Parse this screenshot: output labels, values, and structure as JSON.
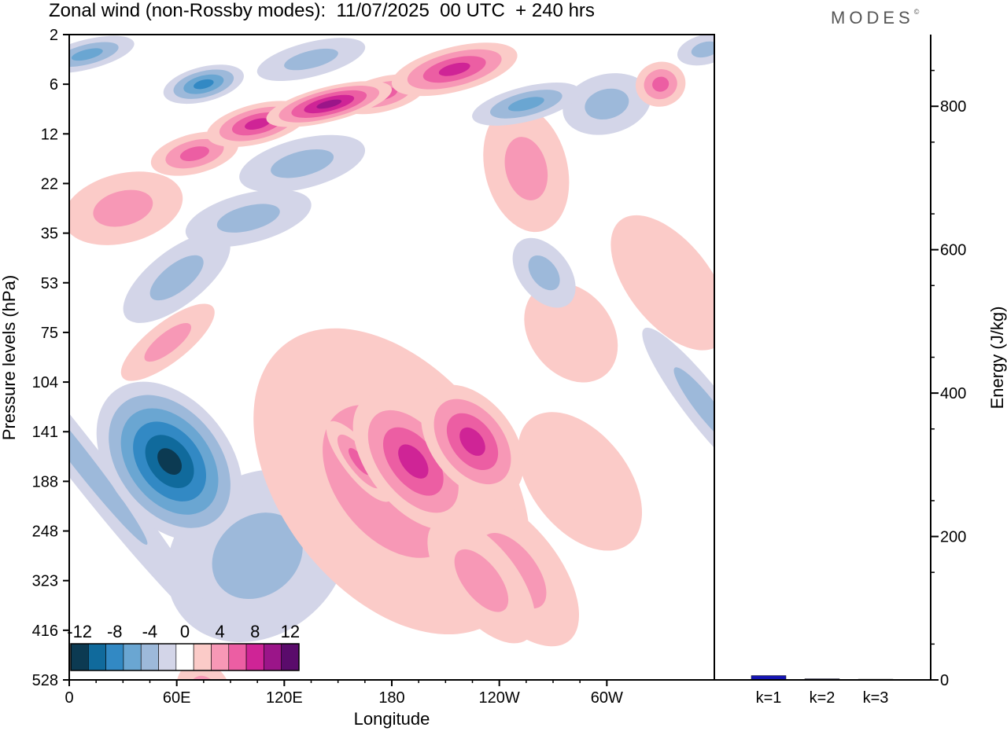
{
  "header": {
    "title": "Zonal wind (non-Rossby modes):  11/07/2025  00 UTC  + 240 hrs",
    "brand": "MODES",
    "brand_mark": "©"
  },
  "colors": {
    "levels": [
      "#0c3a52",
      "#106a9c",
      "#3289c4",
      "#6aa6d2",
      "#9db9da",
      "#d3d5e8",
      "#ffffff",
      "#fbcbc8",
      "#f798b6",
      "#ec5ea3",
      "#cf2496",
      "#9b1589",
      "#5a0b6b"
    ],
    "bar": "#1515b3"
  },
  "chart_data": [
    {
      "type": "heatmap",
      "title": "Zonal wind (non-Rossby modes)",
      "xlabel": "Longitude",
      "ylabel": "Pressure levels (hPa)",
      "x_tick_labels": [
        "0",
        "60E",
        "120E",
        "180",
        "120W",
        "60W"
      ],
      "x_tick_degrees": [
        0,
        60,
        120,
        180,
        240,
        300
      ],
      "xlim": [
        0,
        360
      ],
      "y_tick_labels": [
        "2",
        "6",
        "12",
        "22",
        "35",
        "53",
        "75",
        "104",
        "141",
        "188",
        "248",
        "323",
        "416",
        "528"
      ],
      "colorbar": {
        "labels": [
          "-12",
          "-8",
          "-4",
          "0",
          "4",
          "8",
          "12"
        ],
        "level_values": [
          -12,
          -10,
          -8,
          -6,
          -4,
          -2,
          0,
          2,
          4,
          6,
          8,
          10,
          12
        ]
      },
      "features": [
        {
          "lon": 56,
          "lev": 8.6,
          "w": 3.4,
          "h": 1.8,
          "value": -11
        },
        {
          "lon": 75,
          "lev": 1.0,
          "w": 2.3,
          "h": 0.35,
          "value": -7
        },
        {
          "lon": 10,
          "lev": 0.4,
          "w": 2.7,
          "h": 0.3,
          "value": -6
        },
        {
          "lon": 135,
          "lev": 0.5,
          "w": 3.1,
          "h": 0.35,
          "value": -3
        },
        {
          "lon": 355,
          "lev": 0.3,
          "w": 1.6,
          "h": 0.3,
          "value": -4
        },
        {
          "lon": 175,
          "lev": 1.2,
          "w": 2.5,
          "h": 0.35,
          "value": 6
        },
        {
          "lon": 145,
          "lev": 1.4,
          "w": 3.6,
          "h": 0.35,
          "value": 9
        },
        {
          "lon": 105,
          "lev": 1.8,
          "w": 2.9,
          "h": 0.4,
          "value": 8
        },
        {
          "lon": 70,
          "lev": 2.4,
          "w": 2.5,
          "h": 0.4,
          "value": 6
        },
        {
          "lon": 215,
          "lev": 0.7,
          "w": 3.6,
          "h": 0.45,
          "value": 7
        },
        {
          "lon": 330,
          "lev": 1.0,
          "w": 1.4,
          "h": 0.45,
          "value": 6
        },
        {
          "lon": 255,
          "lev": 1.4,
          "w": 3.1,
          "h": 0.35,
          "value": -5
        },
        {
          "lon": 300,
          "lev": 1.4,
          "w": 2.5,
          "h": 0.6,
          "value": -3
        },
        {
          "lon": 130,
          "lev": 2.6,
          "w": 3.6,
          "h": 0.5,
          "value": -4
        },
        {
          "lon": 100,
          "lev": 3.7,
          "w": 3.6,
          "h": 0.5,
          "value": -3
        },
        {
          "lon": 60,
          "lev": 4.9,
          "w": 3.6,
          "h": 0.55,
          "value": -4
        },
        {
          "lon": 30,
          "lev": 3.5,
          "w": 3.4,
          "h": 0.7,
          "value": 3
        },
        {
          "lon": 55,
          "lev": 6.2,
          "w": 3.2,
          "h": 0.4,
          "value": 3
        },
        {
          "lon": 255,
          "lev": 2.7,
          "w": 2.3,
          "h": 1.3,
          "value": 3
        },
        {
          "lon": 335,
          "lev": 5.0,
          "w": 2.3,
          "h": 1.6,
          "value": 2
        },
        {
          "lon": 280,
          "lev": 6.0,
          "w": 2.3,
          "h": 1.1,
          "value": 2
        },
        {
          "lon": 265,
          "lev": 4.8,
          "w": 1.4,
          "h": 0.8,
          "value": -3
        },
        {
          "lon": 105,
          "lev": 10.5,
          "w": 5.4,
          "h": 1.6,
          "value": -3
        },
        {
          "lon": 5,
          "lev": 8.5,
          "w": 1.1,
          "h": 4.5,
          "value": -3
        },
        {
          "lon": 355,
          "lev": 7.5,
          "w": 1.1,
          "h": 2.0,
          "value": -4
        },
        {
          "lon": 180,
          "lev": 9.0,
          "w": 6.2,
          "h": 3.5,
          "value": 4
        },
        {
          "lon": 192,
          "lev": 8.6,
          "w": 2.5,
          "h": 1.6,
          "value": 8
        },
        {
          "lon": 225,
          "lev": 8.2,
          "w": 2.3,
          "h": 1.3,
          "value": 8
        },
        {
          "lon": 162,
          "lev": 8.6,
          "w": 0.9,
          "h": 1.0,
          "value": 5
        },
        {
          "lon": 248,
          "lev": 10.8,
          "w": 2.5,
          "h": 1.8,
          "value": 4
        },
        {
          "lon": 230,
          "lev": 11.0,
          "w": 2.0,
          "h": 1.5,
          "value": 4
        },
        {
          "lon": 75,
          "lev": 13.2,
          "w": 1.4,
          "h": 0.6,
          "value": 3
        },
        {
          "lon": 285,
          "lev": 9.0,
          "w": 2.7,
          "h": 1.6,
          "value": 2
        }
      ]
    },
    {
      "type": "bar",
      "categories": [
        "k=1",
        "k=2",
        "k=3"
      ],
      "values": [
        6,
        1.5,
        1
      ],
      "ylabel": "Energy (J/kg)",
      "ylim": [
        0,
        900
      ],
      "y_tick_labels": [
        "0",
        "200",
        "400",
        "600",
        "800"
      ],
      "y_tick_values": [
        0,
        200,
        400,
        600,
        800
      ]
    }
  ]
}
